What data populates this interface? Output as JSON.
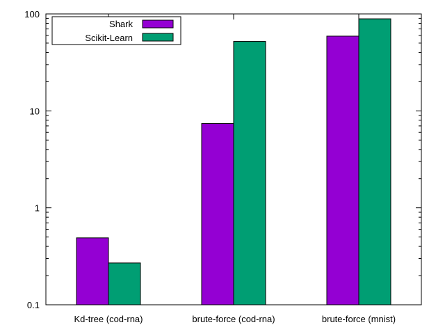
{
  "chart_data": {
    "type": "bar",
    "y_scale": "log",
    "ylim": [
      0.1,
      100
    ],
    "yticks": [
      {
        "value": 0.1,
        "label": "0.1"
      },
      {
        "value": 1,
        "label": "1"
      },
      {
        "value": 10,
        "label": "10"
      },
      {
        "value": 100,
        "label": "100"
      }
    ],
    "categories": [
      "Kd-tree (cod-rna)",
      "brute-force (cod-rna)",
      "brute-force (mnist)"
    ],
    "series": [
      {
        "name": "Shark",
        "color": "#9400d3",
        "values": [
          0.49,
          7.4,
          59
        ]
      },
      {
        "name": "Scikit-Learn",
        "color": "#009e73",
        "values": [
          0.27,
          52,
          89
        ]
      }
    ],
    "legend_position": "top-left",
    "grid": false
  }
}
